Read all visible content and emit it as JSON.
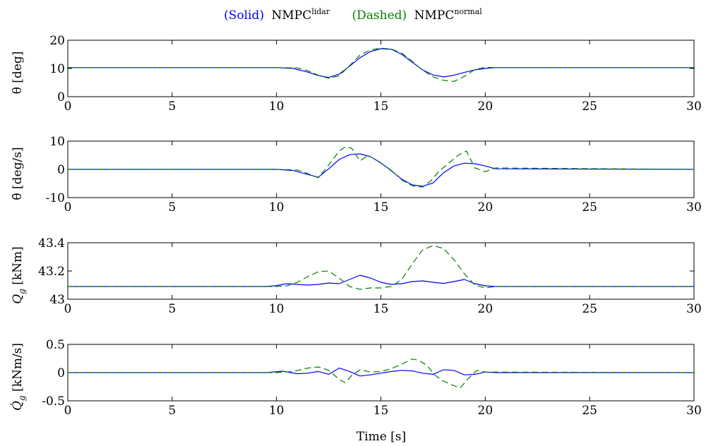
{
  "legend": {
    "solid_tag": "(Solid)",
    "solid_name": "NMPC",
    "solid_sup": "lidar",
    "dashed_tag": "(Dashed)",
    "dashed_name": "NMPC",
    "dashed_sup": "normal"
  },
  "colors": {
    "solid": "#0000ff",
    "dashed": "#008000",
    "axes": "#000000"
  },
  "xlabel": "Time [s]",
  "chart_data": [
    {
      "type": "line",
      "ylabel": "θ [deg]",
      "xlim": [
        0,
        30
      ],
      "ylim": [
        0,
        20
      ],
      "xticks": [
        0,
        5,
        10,
        15,
        20,
        25,
        30
      ],
      "xtick_labels": [
        "0",
        "5",
        "10",
        "15",
        "20",
        "25",
        "30"
      ],
      "yticks": [
        0,
        10,
        20
      ],
      "ytick_labels": [
        "0",
        "10",
        "20"
      ],
      "series": [
        {
          "name": "NMPC lidar",
          "style": "solid",
          "x": [
            0,
            10,
            10.8,
            11.5,
            12.0,
            12.5,
            13.0,
            13.5,
            14.0,
            14.5,
            15.0,
            15.5,
            16.0,
            16.5,
            17.0,
            17.5,
            18.0,
            18.5,
            19.0,
            19.5,
            20.0,
            20.5,
            30
          ],
          "y": [
            10.3,
            10.3,
            10.0,
            8.7,
            7.5,
            6.8,
            8.0,
            10.8,
            13.8,
            16.0,
            17.0,
            16.8,
            15.0,
            12.2,
            9.5,
            7.7,
            7.0,
            7.6,
            8.6,
            9.5,
            10.0,
            10.3,
            10.3
          ]
        },
        {
          "name": "NMPC normal",
          "style": "dashed",
          "x": [
            0,
            10,
            11.0,
            11.5,
            12.0,
            12.5,
            13.0,
            13.5,
            14.0,
            14.5,
            15.0,
            15.5,
            16.0,
            16.5,
            17.0,
            17.5,
            18.0,
            18.5,
            19.0,
            19.5,
            20.0,
            20.5,
            30
          ],
          "y": [
            10.3,
            10.3,
            10.2,
            9.2,
            7.6,
            6.5,
            7.4,
            11.0,
            14.7,
            16.6,
            17.2,
            16.9,
            15.4,
            12.5,
            9.4,
            7.0,
            5.8,
            5.4,
            7.2,
            9.6,
            10.4,
            10.3,
            10.3
          ]
        }
      ]
    },
    {
      "type": "line",
      "ylabel": "θ̇ [deg/s]",
      "xlim": [
        0,
        30
      ],
      "ylim": [
        -10,
        10
      ],
      "xticks": [
        0,
        5,
        10,
        15,
        20,
        25,
        30
      ],
      "xtick_labels": [
        "0",
        "5",
        "10",
        "15",
        "20",
        "25",
        "30"
      ],
      "yticks": [
        -10,
        0,
        10
      ],
      "ytick_labels": [
        "-10",
        "0",
        "10"
      ],
      "series": [
        {
          "name": "NMPC lidar",
          "style": "solid",
          "x": [
            0,
            10,
            10.8,
            11.5,
            12.0,
            12.5,
            13.0,
            13.5,
            14.0,
            14.5,
            15.0,
            15.5,
            16.0,
            16.5,
            17.0,
            17.5,
            18.0,
            18.5,
            19.0,
            19.5,
            20.0,
            20.5,
            30
          ],
          "y": [
            0,
            0,
            -0.4,
            -1.8,
            -2.8,
            0.2,
            3.5,
            5.2,
            5.5,
            4.5,
            2.3,
            -0.5,
            -3.5,
            -5.5,
            -6.0,
            -4.8,
            -1.2,
            1.2,
            2.2,
            2.0,
            1.2,
            0.2,
            0
          ]
        },
        {
          "name": "NMPC normal",
          "style": "dashed",
          "x": [
            0,
            10,
            11.0,
            11.5,
            12.0,
            12.5,
            13.0,
            13.3,
            13.6,
            14.0,
            14.4,
            15.0,
            15.5,
            16.0,
            16.5,
            17.0,
            17.4,
            17.8,
            18.3,
            18.7,
            19.1,
            19.5,
            20.0,
            20.5,
            30
          ],
          "y": [
            0,
            0,
            -0.2,
            -1.5,
            -3.0,
            1.5,
            6.5,
            8.0,
            7.5,
            3.0,
            5.0,
            2.2,
            -0.3,
            -3.8,
            -5.8,
            -6.3,
            -4.0,
            -0.5,
            2.5,
            5.0,
            6.5,
            0.5,
            -0.8,
            0.5,
            0
          ]
        }
      ]
    },
    {
      "type": "line",
      "ylabel": "Q_g [kNm]",
      "xlim": [
        0,
        30
      ],
      "ylim": [
        43,
        43.4
      ],
      "xticks": [
        0,
        5,
        10,
        15,
        20,
        25,
        30
      ],
      "xtick_labels": [
        "0",
        "5",
        "10",
        "15",
        "20",
        "25",
        "30"
      ],
      "yticks": [
        43,
        43.2,
        43.4
      ],
      "ytick_labels": [
        "43",
        "43.2",
        "43.4"
      ],
      "series": [
        {
          "name": "NMPC lidar",
          "style": "solid",
          "x": [
            0,
            9.5,
            10.0,
            10.5,
            11.0,
            11.5,
            12.0,
            12.5,
            13.0,
            13.5,
            14.0,
            14.5,
            15.0,
            15.5,
            16.0,
            16.5,
            17.0,
            17.5,
            18.0,
            18.5,
            19.0,
            19.5,
            20.0,
            20.5,
            30
          ],
          "y": [
            43.09,
            43.09,
            43.097,
            43.11,
            43.105,
            43.1,
            43.105,
            43.115,
            43.11,
            43.14,
            43.17,
            43.15,
            43.12,
            43.105,
            43.11,
            43.125,
            43.13,
            43.12,
            43.112,
            43.125,
            43.14,
            43.11,
            43.095,
            43.09,
            43.09
          ]
        },
        {
          "name": "NMPC normal",
          "style": "dashed",
          "x": [
            0,
            10,
            10.5,
            11.0,
            11.5,
            12.0,
            12.5,
            13.0,
            13.5,
            14.0,
            14.5,
            15.0,
            15.5,
            16.0,
            16.5,
            17.0,
            17.5,
            18.0,
            18.5,
            19.0,
            19.5,
            20.0,
            20.5,
            30
          ],
          "y": [
            43.09,
            43.09,
            43.095,
            43.12,
            43.16,
            43.195,
            43.2,
            43.15,
            43.09,
            43.07,
            43.08,
            43.08,
            43.09,
            43.14,
            43.25,
            43.35,
            43.38,
            43.36,
            43.28,
            43.18,
            43.1,
            43.08,
            43.09,
            43.09
          ]
        }
      ]
    },
    {
      "type": "line",
      "ylabel": "Q̇_g [kNm/s]",
      "xlim": [
        0,
        30
      ],
      "ylim": [
        -0.5,
        0.5
      ],
      "xticks": [
        0,
        5,
        10,
        15,
        20,
        25,
        30
      ],
      "xtick_labels": [
        "0",
        "5",
        "10",
        "15",
        "20",
        "25",
        "30"
      ],
      "yticks": [
        -0.5,
        0,
        0.5
      ],
      "ytick_labels": [
        "-0.5",
        "0",
        "0.5"
      ],
      "series": [
        {
          "name": "NMPC lidar",
          "style": "solid",
          "x": [
            0,
            9.5,
            10.3,
            11.0,
            11.5,
            12.0,
            12.5,
            13.0,
            13.5,
            14.0,
            14.5,
            15.0,
            15.5,
            16.0,
            16.5,
            17.0,
            17.5,
            18.0,
            18.5,
            19.0,
            19.5,
            20.0,
            20.5,
            30
          ],
          "y": [
            0,
            0,
            0.025,
            -0.02,
            -0.01,
            0.02,
            -0.03,
            0.08,
            0.02,
            -0.06,
            -0.04,
            -0.01,
            0.02,
            0.04,
            0.03,
            -0.01,
            -0.03,
            0.05,
            0.04,
            -0.04,
            -0.03,
            0.01,
            0,
            0
          ]
        },
        {
          "name": "NMPC normal",
          "style": "dashed",
          "x": [
            0,
            10,
            10.8,
            11.5,
            12.0,
            12.5,
            13.0,
            13.3,
            13.6,
            14.0,
            14.5,
            15.0,
            15.5,
            16.0,
            16.5,
            16.8,
            17.2,
            17.6,
            18.0,
            18.4,
            18.8,
            19.2,
            19.6,
            20.0,
            30
          ],
          "y": [
            0,
            0,
            0.02,
            0.08,
            0.1,
            0.04,
            -0.12,
            -0.18,
            -0.05,
            0.05,
            0.01,
            0.02,
            0.07,
            0.15,
            0.24,
            0.22,
            0.13,
            -0.05,
            -0.15,
            -0.22,
            -0.27,
            -0.1,
            0.04,
            0.01,
            0
          ]
        }
      ]
    }
  ]
}
